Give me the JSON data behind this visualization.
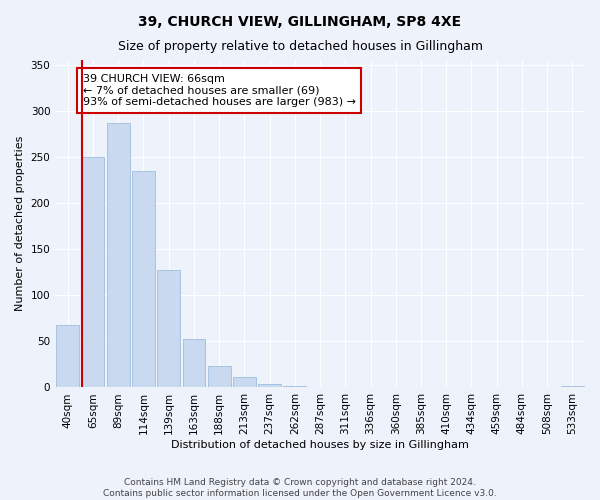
{
  "title": "39, CHURCH VIEW, GILLINGHAM, SP8 4XE",
  "subtitle": "Size of property relative to detached houses in Gillingham",
  "xlabel": "Distribution of detached houses by size in Gillingham",
  "ylabel": "Number of detached properties",
  "bar_color": "#c8d9f0",
  "bar_edge_color": "#a0bede",
  "bg_color": "#eef2fb",
  "grid_color": "#ffffff",
  "categories": [
    "40sqm",
    "65sqm",
    "89sqm",
    "114sqm",
    "139sqm",
    "163sqm",
    "188sqm",
    "213sqm",
    "237sqm",
    "262sqm",
    "287sqm",
    "311sqm",
    "336sqm",
    "360sqm",
    "385sqm",
    "410sqm",
    "434sqm",
    "459sqm",
    "484sqm",
    "508sqm",
    "533sqm"
  ],
  "values": [
    68,
    250,
    287,
    235,
    127,
    52,
    23,
    11,
    4,
    2,
    1,
    0,
    0,
    0,
    0,
    0,
    0,
    0,
    0,
    0,
    2
  ],
  "vline_bar_index": 1,
  "vline_color": "#cc0000",
  "annotation_text": "39 CHURCH VIEW: 66sqm\n← 7% of detached houses are smaller (69)\n93% of semi-detached houses are larger (983) →",
  "annotation_box_color": "#ffffff",
  "annotation_box_edge": "#cc0000",
  "ylim": [
    0,
    355
  ],
  "yticks": [
    0,
    50,
    100,
    150,
    200,
    250,
    300,
    350
  ],
  "footer": "Contains HM Land Registry data © Crown copyright and database right 2024.\nContains public sector information licensed under the Open Government Licence v3.0.",
  "title_fontsize": 10,
  "subtitle_fontsize": 9,
  "axis_label_fontsize": 8,
  "tick_fontsize": 7.5,
  "annotation_fontsize": 8,
  "footer_fontsize": 6.5
}
